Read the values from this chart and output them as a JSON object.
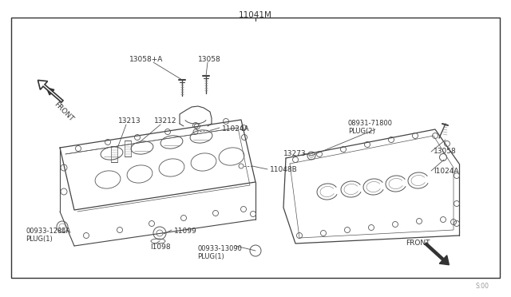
{
  "title": "11041M",
  "bg_color": "#ffffff",
  "border_color": "#000000",
  "line_color": "#555555",
  "text_color": "#333333",
  "labels": {
    "title": "11041M",
    "l13058_a": "13058+A",
    "l13058_left": "13058",
    "l13212": "13212",
    "l13213": "13213",
    "l11024a_left": "11024A",
    "l11048b": "11048B",
    "l11099": "11099",
    "l11098": "I1098",
    "l00933_1281a": "00933-1281A\nPLUG(1)",
    "l00933_13090": "00933-13090\nPLUG(1)",
    "l08931_71800": "08931-71800\nPLUG(2)",
    "l13273": "13273",
    "l13058_right": "13058",
    "l11024a_right": "I1024A",
    "front_left": "FRONT",
    "front_right": "FRONT",
    "watermark": "S:00"
  }
}
